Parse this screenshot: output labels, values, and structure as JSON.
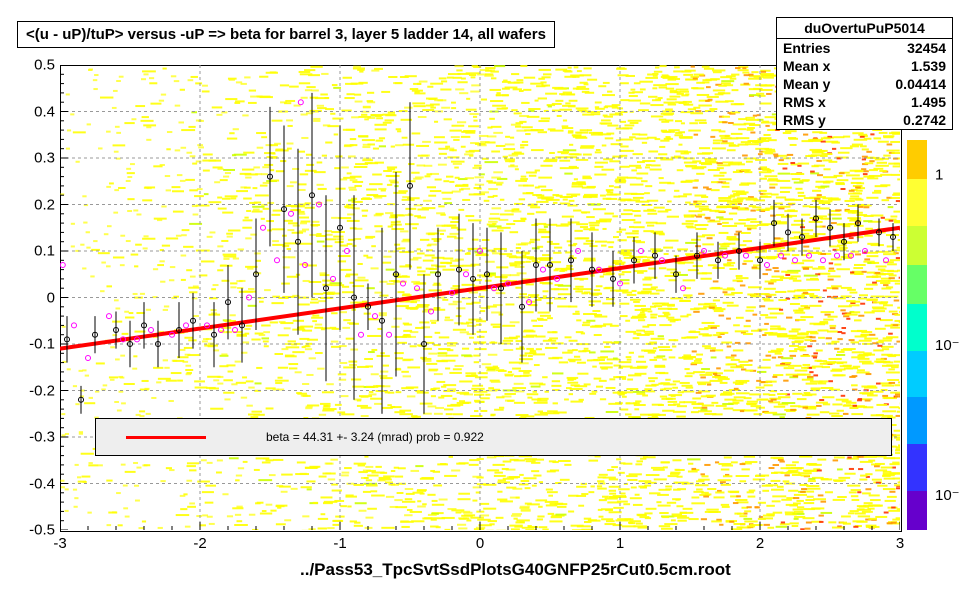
{
  "chart": {
    "type": "scatter-heatmap",
    "title": "<(u - uP)/tuP> versus  -uP => beta for barrel 3, layer 5 ladder 14, all wafers",
    "file_label": "../Pass53_TpcSvtSsdPlotsG40GNFP25rCut0.5cm.root",
    "background_color": "#ffffff",
    "plot_border_color": "#000000",
    "xlim": [
      -3,
      3
    ],
    "ylim": [
      -0.5,
      0.5
    ],
    "xtick_step": 1,
    "ytick_step": 0.1,
    "xticks": [
      -3,
      -2,
      -1,
      0,
      1,
      2,
      3
    ],
    "yticks": [
      -0.5,
      -0.4,
      -0.3,
      -0.2,
      -0.1,
      0,
      0.1,
      0.2,
      0.3,
      0.4,
      0.5
    ],
    "zticks": [
      "1",
      "10⁻",
      "10⁻"
    ],
    "grid_color": "#999999",
    "grid_dash": "3,3",
    "heatmap_colors_low_to_high": [
      "#5e00ff",
      "#0066ff",
      "#00ccff",
      "#00ffcc",
      "#66ff66",
      "#ccff00",
      "#ffff00",
      "#ff9900",
      "#ff3300"
    ],
    "colorbar": {
      "segments": [
        {
          "color": "#ffcc00",
          "h": 0.1
        },
        {
          "color": "#ffff33",
          "h": 0.12
        },
        {
          "color": "#ccff33",
          "h": 0.1
        },
        {
          "color": "#66ff66",
          "h": 0.1
        },
        {
          "color": "#00ffcc",
          "h": 0.12
        },
        {
          "color": "#00ccff",
          "h": 0.12
        },
        {
          "color": "#0099ff",
          "h": 0.12
        },
        {
          "color": "#3333ff",
          "h": 0.12
        },
        {
          "color": "#6600cc",
          "h": 0.1
        }
      ]
    },
    "fit_line": {
      "color": "#ff0000",
      "width": 4,
      "x1": -3,
      "y1": -0.11,
      "x2": 3,
      "y2": 0.15
    },
    "legend": {
      "background": "#eeeeee",
      "border": "#000000",
      "line_color": "#ff0000",
      "text": "beta =   44.31 +-  3.24 (mrad) prob = 0.922"
    },
    "stats": {
      "name": "duOvertuPuP5014",
      "rows": [
        {
          "label": "Entries",
          "value": "32454"
        },
        {
          "label": "Mean x",
          "value": "1.539"
        },
        {
          "label": "Mean y",
          "value": "0.04414"
        },
        {
          "label": "RMS x",
          "value": "1.495"
        },
        {
          "label": "RMS y",
          "value": "0.2742"
        }
      ]
    },
    "scatter_black": {
      "marker": "circle-open",
      "size": 5,
      "color": "#000000",
      "points": [
        {
          "x": -2.95,
          "y": -0.09,
          "eyl": 0.05,
          "eyh": 0.05
        },
        {
          "x": -2.85,
          "y": -0.22,
          "eyl": 0.03,
          "eyh": 0.03
        },
        {
          "x": -2.75,
          "y": -0.08,
          "eyl": 0.04,
          "eyh": 0.04
        },
        {
          "x": -2.6,
          "y": -0.07,
          "eyl": 0.04,
          "eyh": 0.04
        },
        {
          "x": -2.5,
          "y": -0.1,
          "eyl": 0.05,
          "eyh": 0.05
        },
        {
          "x": -2.4,
          "y": -0.06,
          "eyl": 0.05,
          "eyh": 0.05
        },
        {
          "x": -2.3,
          "y": -0.1,
          "eyl": 0.05,
          "eyh": 0.05
        },
        {
          "x": -2.15,
          "y": -0.07,
          "eyl": 0.06,
          "eyh": 0.06
        },
        {
          "x": -2.05,
          "y": -0.05,
          "eyl": 0.06,
          "eyh": 0.06
        },
        {
          "x": -1.9,
          "y": -0.08,
          "eyl": 0.07,
          "eyh": 0.07
        },
        {
          "x": -1.8,
          "y": -0.01,
          "eyl": 0.08,
          "eyh": 0.08
        },
        {
          "x": -1.7,
          "y": -0.06,
          "eyl": 0.08,
          "eyh": 0.08
        },
        {
          "x": -1.6,
          "y": 0.05,
          "eyl": 0.12,
          "eyh": 0.12
        },
        {
          "x": -1.5,
          "y": 0.26,
          "eyl": 0.15,
          "eyh": 0.15
        },
        {
          "x": -1.4,
          "y": 0.19,
          "eyl": 0.18,
          "eyh": 0.18
        },
        {
          "x": -1.3,
          "y": 0.12,
          "eyl": 0.2,
          "eyh": 0.2
        },
        {
          "x": -1.2,
          "y": 0.22,
          "eyl": 0.22,
          "eyh": 0.22
        },
        {
          "x": -1.1,
          "y": 0.02,
          "eyl": 0.2,
          "eyh": 0.2
        },
        {
          "x": -1.0,
          "y": 0.15,
          "eyl": 0.22,
          "eyh": 0.22
        },
        {
          "x": -0.9,
          "y": 0.0,
          "eyl": 0.22,
          "eyh": 0.22
        },
        {
          "x": -0.8,
          "y": -0.02,
          "eyl": 0.05,
          "eyh": 0.05
        },
        {
          "x": -0.7,
          "y": -0.05,
          "eyl": 0.2,
          "eyh": 0.2
        },
        {
          "x": -0.6,
          "y": 0.05,
          "eyl": 0.22,
          "eyh": 0.22
        },
        {
          "x": -0.5,
          "y": 0.24,
          "eyl": 0.18,
          "eyh": 0.18
        },
        {
          "x": -0.4,
          "y": -0.1,
          "eyl": 0.15,
          "eyh": 0.15
        },
        {
          "x": -0.3,
          "y": 0.05,
          "eyl": 0.1,
          "eyh": 0.1
        },
        {
          "x": -0.15,
          "y": 0.06,
          "eyl": 0.12,
          "eyh": 0.12
        },
        {
          "x": -0.05,
          "y": 0.04,
          "eyl": 0.12,
          "eyh": 0.12
        },
        {
          "x": 0.05,
          "y": 0.05,
          "eyl": 0.1,
          "eyh": 0.1
        },
        {
          "x": 0.15,
          "y": 0.02,
          "eyl": 0.12,
          "eyh": 0.12
        },
        {
          "x": 0.3,
          "y": -0.02,
          "eyl": 0.12,
          "eyh": 0.12
        },
        {
          "x": 0.4,
          "y": 0.07,
          "eyl": 0.1,
          "eyh": 0.1
        },
        {
          "x": 0.5,
          "y": 0.07,
          "eyl": 0.1,
          "eyh": 0.1
        },
        {
          "x": 0.65,
          "y": 0.08,
          "eyl": 0.09,
          "eyh": 0.09
        },
        {
          "x": 0.8,
          "y": 0.06,
          "eyl": 0.08,
          "eyh": 0.08
        },
        {
          "x": 0.95,
          "y": 0.04,
          "eyl": 0.06,
          "eyh": 0.06
        },
        {
          "x": 1.1,
          "y": 0.08,
          "eyl": 0.05,
          "eyh": 0.05
        },
        {
          "x": 1.25,
          "y": 0.09,
          "eyl": 0.05,
          "eyh": 0.05
        },
        {
          "x": 1.4,
          "y": 0.05,
          "eyl": 0.04,
          "eyh": 0.04
        },
        {
          "x": 1.55,
          "y": 0.09,
          "eyl": 0.05,
          "eyh": 0.05
        },
        {
          "x": 1.7,
          "y": 0.08,
          "eyl": 0.04,
          "eyh": 0.04
        },
        {
          "x": 1.85,
          "y": 0.1,
          "eyl": 0.04,
          "eyh": 0.04
        },
        {
          "x": 2.0,
          "y": 0.08,
          "eyl": 0.04,
          "eyh": 0.04
        },
        {
          "x": 2.1,
          "y": 0.16,
          "eyl": 0.05,
          "eyh": 0.05
        },
        {
          "x": 2.2,
          "y": 0.14,
          "eyl": 0.04,
          "eyh": 0.04
        },
        {
          "x": 2.3,
          "y": 0.13,
          "eyl": 0.04,
          "eyh": 0.04
        },
        {
          "x": 2.4,
          "y": 0.17,
          "eyl": 0.04,
          "eyh": 0.04
        },
        {
          "x": 2.5,
          "y": 0.15,
          "eyl": 0.04,
          "eyh": 0.04
        },
        {
          "x": 2.6,
          "y": 0.12,
          "eyl": 0.04,
          "eyh": 0.04
        },
        {
          "x": 2.7,
          "y": 0.16,
          "eyl": 0.04,
          "eyh": 0.04
        },
        {
          "x": 2.85,
          "y": 0.14,
          "eyl": 0.03,
          "eyh": 0.03
        },
        {
          "x": 2.95,
          "y": 0.13,
          "eyl": 0.03,
          "eyh": 0.03
        }
      ]
    },
    "scatter_pink": {
      "marker": "circle-open",
      "size": 5,
      "color": "#ff00ff",
      "points": [
        {
          "x": -2.98,
          "y": 0.07
        },
        {
          "x": -2.9,
          "y": -0.06
        },
        {
          "x": -2.8,
          "y": -0.13
        },
        {
          "x": -2.65,
          "y": -0.04
        },
        {
          "x": -2.55,
          "y": -0.09
        },
        {
          "x": -2.45,
          "y": -0.09
        },
        {
          "x": -2.35,
          "y": -0.07
        },
        {
          "x": -2.2,
          "y": -0.08
        },
        {
          "x": -2.1,
          "y": -0.06
        },
        {
          "x": -1.95,
          "y": -0.06
        },
        {
          "x": -1.85,
          "y": -0.07
        },
        {
          "x": -1.75,
          "y": -0.07
        },
        {
          "x": -1.65,
          "y": 0.0
        },
        {
          "x": -1.55,
          "y": 0.15
        },
        {
          "x": -1.45,
          "y": 0.08
        },
        {
          "x": -1.35,
          "y": 0.18
        },
        {
          "x": -1.28,
          "y": 0.42
        },
        {
          "x": -1.25,
          "y": 0.07
        },
        {
          "x": -1.15,
          "y": 0.2
        },
        {
          "x": -1.05,
          "y": 0.04
        },
        {
          "x": -0.95,
          "y": 0.1
        },
        {
          "x": -0.85,
          "y": -0.08
        },
        {
          "x": -0.75,
          "y": -0.04
        },
        {
          "x": -0.65,
          "y": -0.08
        },
        {
          "x": -0.55,
          "y": 0.03
        },
        {
          "x": -0.45,
          "y": 0.02
        },
        {
          "x": -0.35,
          "y": -0.03
        },
        {
          "x": -0.2,
          "y": 0.01
        },
        {
          "x": -0.1,
          "y": 0.05
        },
        {
          "x": 0.0,
          "y": 0.1
        },
        {
          "x": 0.1,
          "y": 0.02
        },
        {
          "x": 0.2,
          "y": 0.03
        },
        {
          "x": 0.35,
          "y": -0.01
        },
        {
          "x": 0.45,
          "y": 0.06
        },
        {
          "x": 0.55,
          "y": 0.04
        },
        {
          "x": 0.7,
          "y": 0.1
        },
        {
          "x": 0.85,
          "y": 0.06
        },
        {
          "x": 1.0,
          "y": 0.03
        },
        {
          "x": 1.15,
          "y": 0.1
        },
        {
          "x": 1.3,
          "y": 0.08
        },
        {
          "x": 1.45,
          "y": 0.02
        },
        {
          "x": 1.6,
          "y": 0.1
        },
        {
          "x": 1.75,
          "y": 0.09
        },
        {
          "x": 1.9,
          "y": 0.09
        },
        {
          "x": 2.05,
          "y": 0.07
        },
        {
          "x": 2.15,
          "y": 0.09
        },
        {
          "x": 2.25,
          "y": 0.08
        },
        {
          "x": 2.35,
          "y": 0.09
        },
        {
          "x": 2.45,
          "y": 0.08
        },
        {
          "x": 2.55,
          "y": 0.09
        },
        {
          "x": 2.65,
          "y": 0.09
        },
        {
          "x": 2.75,
          "y": 0.1
        },
        {
          "x": 2.9,
          "y": 0.08
        }
      ]
    }
  }
}
